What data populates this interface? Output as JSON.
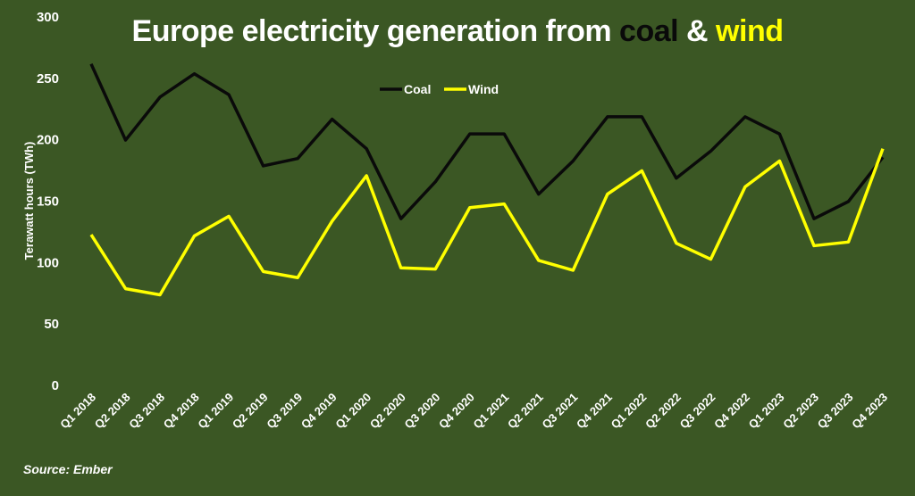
{
  "chart_data": {
    "type": "line",
    "title_parts": [
      "Europe electricity generation from ",
      "coal",
      " & ",
      "wind"
    ],
    "ylabel": "Terawatt hours (TWh)",
    "xlabel": "",
    "ylim": [
      0,
      300
    ],
    "yticks": [
      0,
      50,
      100,
      150,
      200,
      250,
      300
    ],
    "grid": false,
    "legend_position": "top-center",
    "categories": [
      "Q1 2018",
      "Q2 2018",
      "Q3 2018",
      "Q4 2018",
      "Q1 2019",
      "Q2 2019",
      "Q3 2019",
      "Q4 2019",
      "Q1 2020",
      "Q2 2020",
      "Q3 2020",
      "Q4 2020",
      "Q1 2021",
      "Q2 2021",
      "Q3 2021",
      "Q4 2021",
      "Q1 2022",
      "Q2 2022",
      "Q3 2022",
      "Q4 2022",
      "Q1 2023",
      "Q2 2023",
      "Q3 2023",
      "Q4 2023"
    ],
    "series": [
      {
        "name": "Coal",
        "color": "#0a0a0a",
        "values": [
          261,
          199,
          234,
          253,
          236,
          178,
          184,
          216,
          192,
          135,
          165,
          204,
          204,
          155,
          182,
          218,
          218,
          168,
          190,
          218,
          204,
          135,
          149,
          185
        ]
      },
      {
        "name": "Wind",
        "color": "#ffff00",
        "values": [
          122,
          78,
          73,
          121,
          137,
          92,
          87,
          133,
          170,
          95,
          94,
          144,
          147,
          101,
          93,
          155,
          174,
          115,
          102,
          161,
          182,
          113,
          116,
          192
        ]
      }
    ],
    "source": "Source: Ember"
  }
}
